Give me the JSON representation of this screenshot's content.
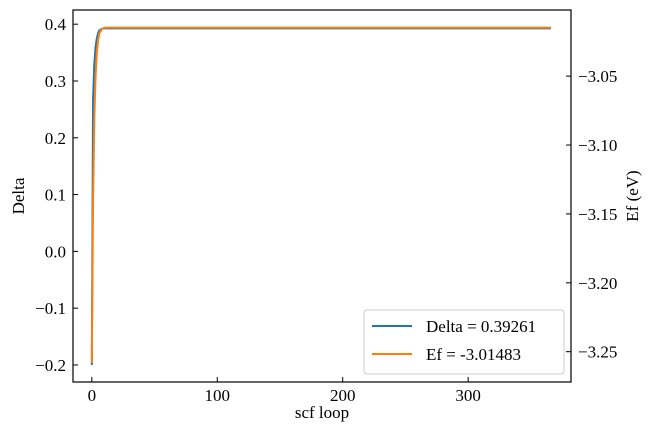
{
  "chart_data": {
    "type": "line",
    "xlabel": "scf loop",
    "ylabel_left": "Delta",
    "ylabel_right": "Ef (eV)",
    "xlim": [
      -15,
      382
    ],
    "ylim_left": [
      -0.23,
      0.425
    ],
    "ylim_right": [
      -3.272,
      -3.002
    ],
    "xticks": [
      0,
      100,
      200,
      300
    ],
    "yticks_left": [
      -0.2,
      -0.1,
      0.0,
      0.1,
      0.2,
      0.3,
      0.4
    ],
    "yticks_right": [
      -3.25,
      -3.2,
      -3.15,
      -3.1,
      -3.05
    ],
    "xtick_labels": [
      "0",
      "100",
      "200",
      "300"
    ],
    "ytick_labels_left": [
      "−0.2",
      "−0.1",
      "0.0",
      "0.1",
      "0.2",
      "0.3",
      "0.4"
    ],
    "ytick_labels_right": [
      "−3.25",
      "−3.20",
      "−3.15",
      "−3.10",
      "−3.05"
    ],
    "legend_position": "lower-right",
    "grid": false,
    "series": [
      {
        "name": "Delta = 0.39261",
        "axis": "left",
        "color": "#1f77b4",
        "x": [
          0,
          1,
          2,
          3,
          4,
          5,
          6,
          8,
          10,
          15,
          50,
          100,
          150,
          200,
          250,
          300,
          366
        ],
        "y": [
          -0.2,
          0.27,
          0.33,
          0.36,
          0.375,
          0.384,
          0.389,
          0.392,
          0.3926,
          0.3926,
          0.3926,
          0.3926,
          0.3926,
          0.3926,
          0.3926,
          0.3926,
          0.3926
        ]
      },
      {
        "name": "Ef = -3.01483",
        "axis": "right",
        "color": "#ff7f0e",
        "x": [
          0,
          1,
          2,
          3,
          4,
          5,
          6,
          8,
          10,
          15,
          50,
          100,
          150,
          200,
          250,
          300,
          366
        ],
        "y": [
          -3.258,
          -3.14,
          -3.08,
          -3.05,
          -3.033,
          -3.024,
          -3.019,
          -3.0158,
          -3.0149,
          -3.0148,
          -3.0148,
          -3.0148,
          -3.0148,
          -3.0148,
          -3.0148,
          -3.0148,
          -3.01483
        ]
      }
    ]
  }
}
